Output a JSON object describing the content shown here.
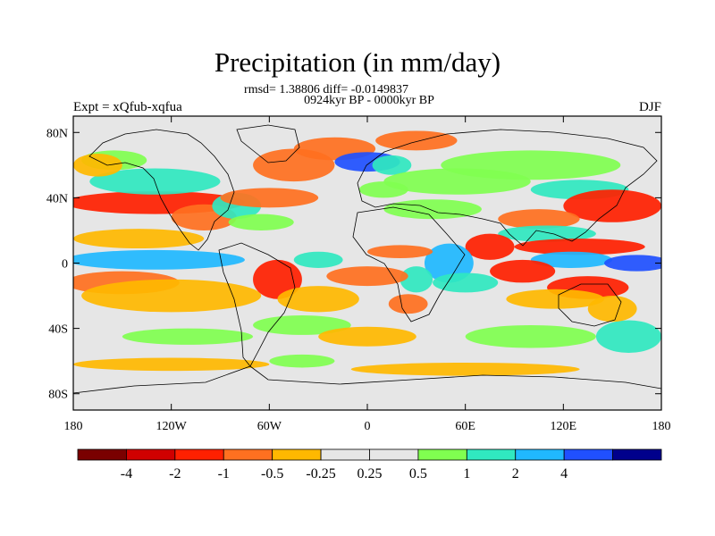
{
  "header": {
    "title": "Precipitation (in mm/day)",
    "stats": "rmsd= 1.38806 diff= -0.0149837",
    "period": "0924kyr BP - 0000kyr BP",
    "experiment": "Expt = xQfub-xqfua",
    "season": "DJF"
  },
  "map": {
    "lon_range": [
      -180,
      180
    ],
    "lat_range": [
      -90,
      90
    ],
    "projection": "cylindrical-equidistant",
    "lat_labels": [
      "80N",
      "40N",
      "0",
      "40S",
      "80S"
    ],
    "lat_values": [
      80,
      40,
      0,
      -40,
      -80
    ],
    "lon_labels": [
      "180",
      "120W",
      "60W",
      "0",
      "60E",
      "120E",
      "180"
    ],
    "lon_values": [
      -180,
      -120,
      -60,
      0,
      60,
      120,
      180
    ],
    "background_color": "#e6e6e6",
    "anomaly_regions": [
      {
        "lon": -130,
        "lat": 37,
        "rx": 55,
        "ry": 7,
        "level": -3
      },
      {
        "lon": -100,
        "lat": 28,
        "rx": 20,
        "ry": 8,
        "level": -2
      },
      {
        "lon": -140,
        "lat": 15,
        "rx": 40,
        "ry": 6,
        "level": -1
      },
      {
        "lon": -130,
        "lat": 2,
        "rx": 55,
        "ry": 6,
        "level": 3
      },
      {
        "lon": -150,
        "lat": -12,
        "rx": 35,
        "ry": 7,
        "level": -2
      },
      {
        "lon": -120,
        "lat": -20,
        "rx": 55,
        "ry": 10,
        "level": -1
      },
      {
        "lon": -130,
        "lat": 50,
        "rx": 40,
        "ry": 8,
        "level": 2
      },
      {
        "lon": -155,
        "lat": 63,
        "rx": 20,
        "ry": 6,
        "level": 1
      },
      {
        "lon": -165,
        "lat": 60,
        "rx": 15,
        "ry": 7,
        "level": -1
      },
      {
        "lon": -80,
        "lat": 35,
        "rx": 15,
        "ry": 8,
        "level": 2
      },
      {
        "lon": -60,
        "lat": 40,
        "rx": 30,
        "ry": 6,
        "level": -2
      },
      {
        "lon": -65,
        "lat": 25,
        "rx": 20,
        "ry": 5,
        "level": 1
      },
      {
        "lon": -45,
        "lat": 60,
        "rx": 25,
        "ry": 10,
        "level": -2
      },
      {
        "lon": -20,
        "lat": 70,
        "rx": 25,
        "ry": 7,
        "level": -2
      },
      {
        "lon": 0,
        "lat": 62,
        "rx": 20,
        "ry": 6,
        "level": 4
      },
      {
        "lon": 15,
        "lat": 60,
        "rx": 12,
        "ry": 6,
        "level": 2
      },
      {
        "lon": 30,
        "lat": 75,
        "rx": 25,
        "ry": 6,
        "level": -2
      },
      {
        "lon": 10,
        "lat": 45,
        "rx": 15,
        "ry": 5,
        "level": 1
      },
      {
        "lon": 40,
        "lat": 33,
        "rx": 30,
        "ry": 6,
        "level": 1
      },
      {
        "lon": 55,
        "lat": 50,
        "rx": 45,
        "ry": 8,
        "level": 1
      },
      {
        "lon": 100,
        "lat": 60,
        "rx": 55,
        "ry": 9,
        "level": 1
      },
      {
        "lon": 130,
        "lat": 45,
        "rx": 30,
        "ry": 6,
        "level": 2
      },
      {
        "lon": 150,
        "lat": 35,
        "rx": 30,
        "ry": 10,
        "level": -3
      },
      {
        "lon": 105,
        "lat": 27,
        "rx": 25,
        "ry": 6,
        "level": -2
      },
      {
        "lon": 110,
        "lat": 18,
        "rx": 30,
        "ry": 5,
        "level": 2
      },
      {
        "lon": 130,
        "lat": 10,
        "rx": 40,
        "ry": 5,
        "level": -3
      },
      {
        "lon": 125,
        "lat": 2,
        "rx": 25,
        "ry": 5,
        "level": 3
      },
      {
        "lon": 165,
        "lat": 0,
        "rx": 20,
        "ry": 5,
        "level": 4
      },
      {
        "lon": 75,
        "lat": 10,
        "rx": 15,
        "ry": 8,
        "level": -3
      },
      {
        "lon": 95,
        "lat": -5,
        "rx": 20,
        "ry": 7,
        "level": -3
      },
      {
        "lon": 135,
        "lat": -15,
        "rx": 25,
        "ry": 7,
        "level": -3
      },
      {
        "lon": 115,
        "lat": -22,
        "rx": 30,
        "ry": 6,
        "level": -1
      },
      {
        "lon": 100,
        "lat": -45,
        "rx": 40,
        "ry": 7,
        "level": 1
      },
      {
        "lon": 160,
        "lat": -45,
        "rx": 20,
        "ry": 10,
        "level": 2
      },
      {
        "lon": 150,
        "lat": -28,
        "rx": 15,
        "ry": 8,
        "level": -1
      },
      {
        "lon": 50,
        "lat": 0,
        "rx": 15,
        "ry": 12,
        "level": 3
      },
      {
        "lon": 60,
        "lat": -12,
        "rx": 20,
        "ry": 6,
        "level": 2
      },
      {
        "lon": 30,
        "lat": -10,
        "rx": 10,
        "ry": 8,
        "level": 2
      },
      {
        "lon": 20,
        "lat": 7,
        "rx": 20,
        "ry": 4,
        "level": -2
      },
      {
        "lon": 0,
        "lat": -8,
        "rx": 25,
        "ry": 6,
        "level": -2
      },
      {
        "lon": 25,
        "lat": -25,
        "rx": 12,
        "ry": 6,
        "level": -2
      },
      {
        "lon": -30,
        "lat": 2,
        "rx": 15,
        "ry": 5,
        "level": 2
      },
      {
        "lon": -55,
        "lat": -10,
        "rx": 15,
        "ry": 12,
        "level": -3
      },
      {
        "lon": -30,
        "lat": -22,
        "rx": 25,
        "ry": 8,
        "level": -1
      },
      {
        "lon": -40,
        "lat": -38,
        "rx": 30,
        "ry": 6,
        "level": 1
      },
      {
        "lon": 0,
        "lat": -45,
        "rx": 30,
        "ry": 6,
        "level": -1
      },
      {
        "lon": -110,
        "lat": -45,
        "rx": 40,
        "ry": 5,
        "level": 1
      },
      {
        "lon": -120,
        "lat": -62,
        "rx": 60,
        "ry": 4,
        "level": -1
      },
      {
        "lon": 60,
        "lat": -65,
        "rx": 70,
        "ry": 4,
        "level": -1
      },
      {
        "lon": -40,
        "lat": -60,
        "rx": 20,
        "ry": 4,
        "level": 1
      }
    ]
  },
  "colorbar": {
    "colors": [
      "#7a0000",
      "#d00000",
      "#ff2000",
      "#ff7020",
      "#ffb800",
      "#e6e6e6",
      "#e6e6e6",
      "#80ff50",
      "#30e8c0",
      "#20b8ff",
      "#2050ff",
      "#00008c"
    ],
    "labels": [
      "-4",
      "-2",
      "-1",
      "-0.5",
      "-0.25",
      "0.25",
      "0.5",
      "1",
      "2",
      "4"
    ]
  }
}
